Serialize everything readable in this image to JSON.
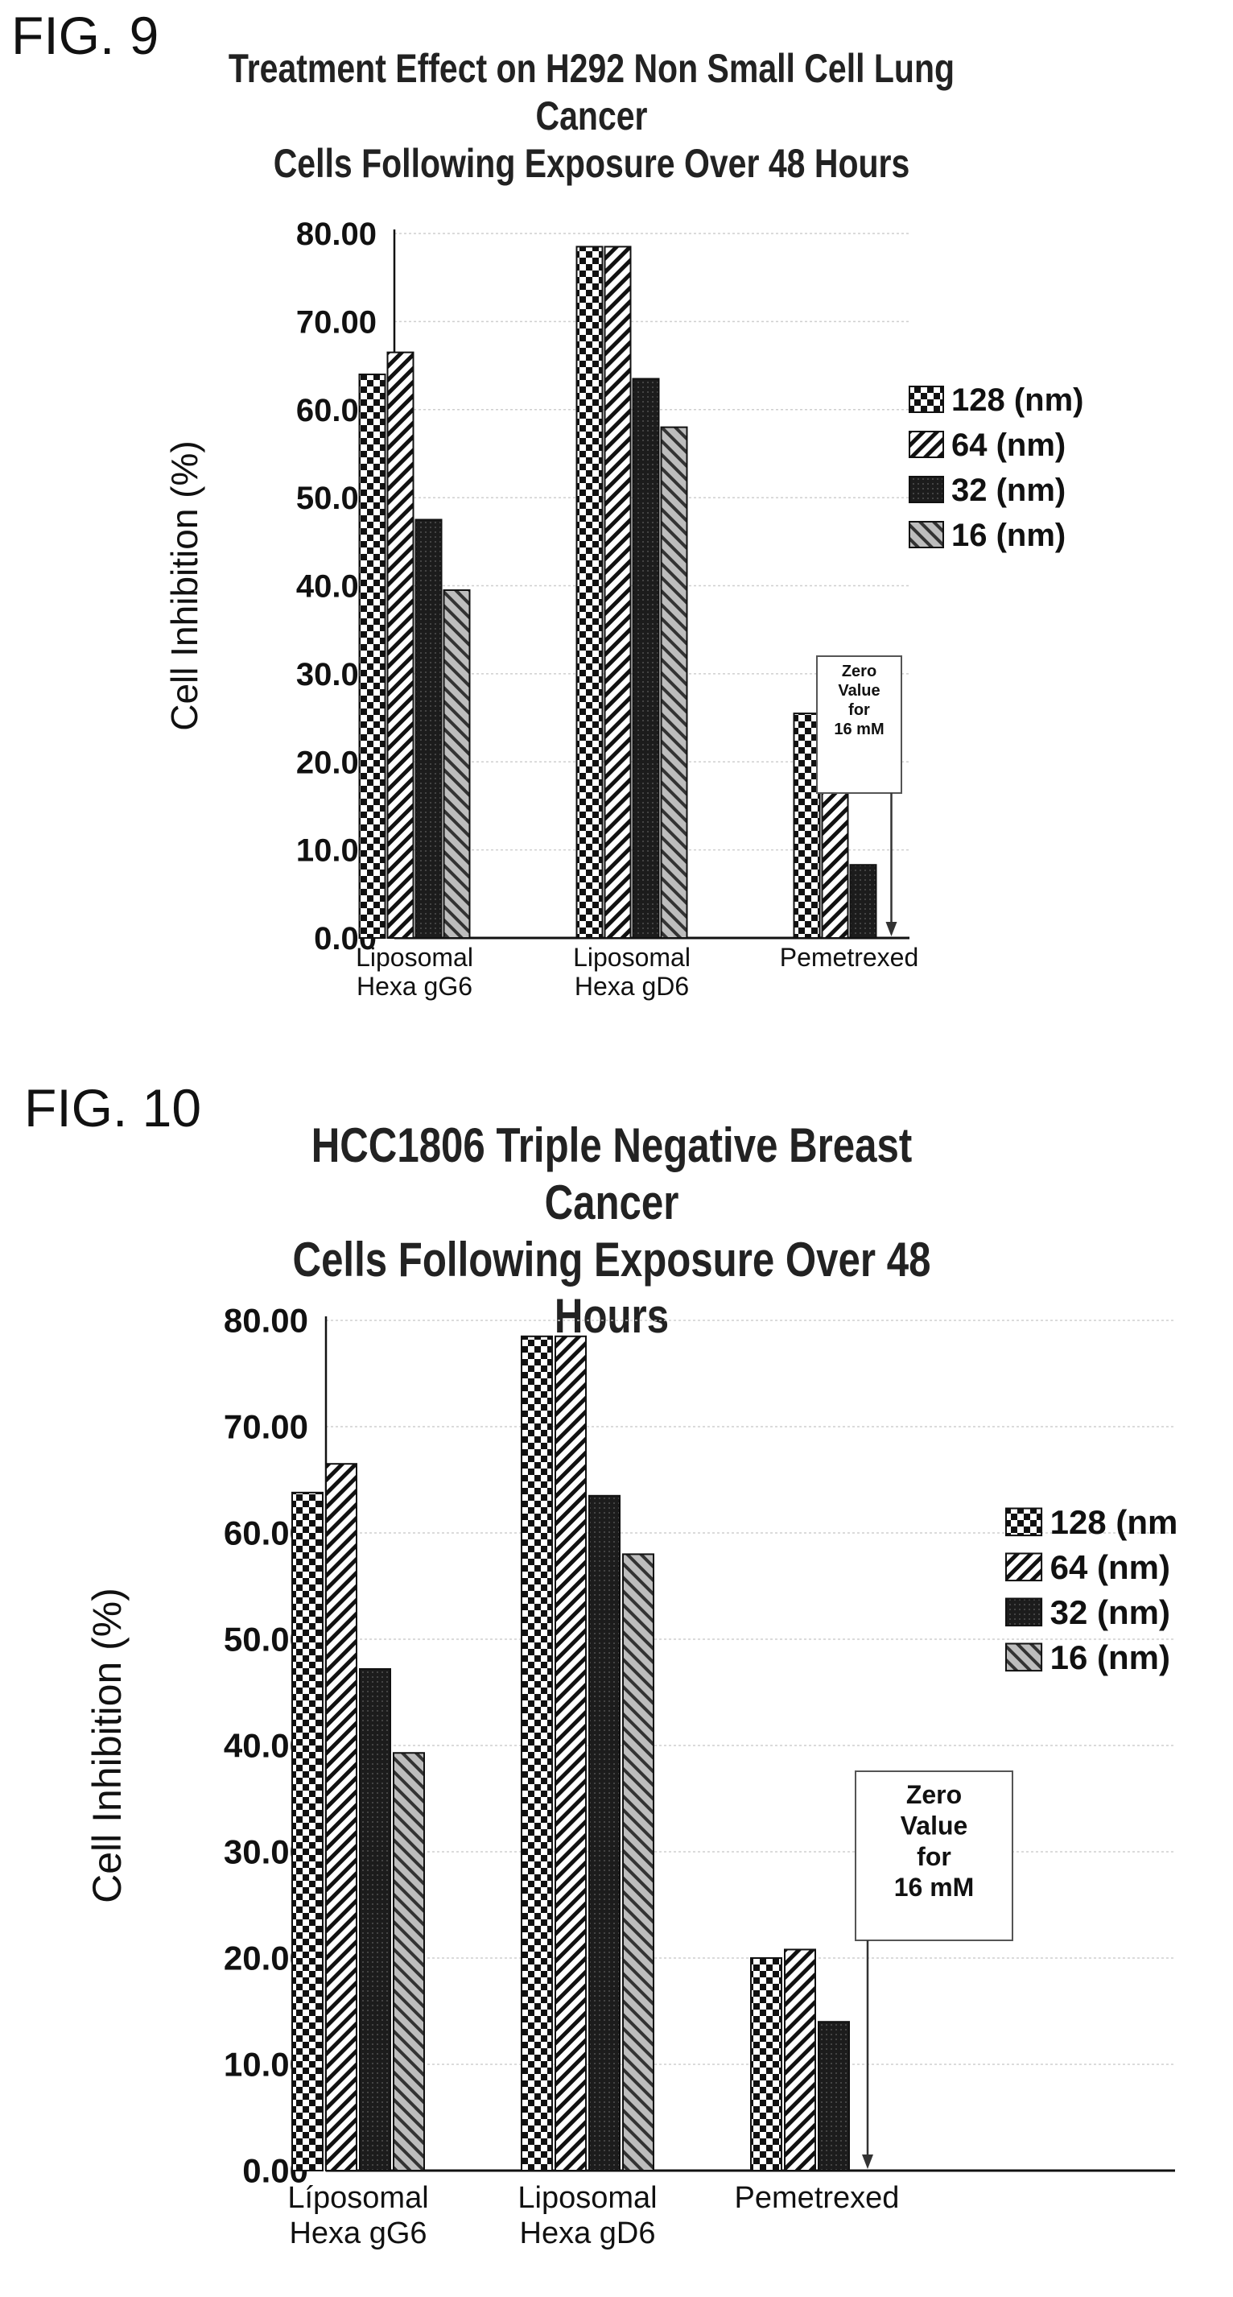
{
  "figures": [
    {
      "label": "FIG. 9",
      "title_lines": [
        "Treatment Effect on H292 Non Small Cell Lung Cancer",
        "Cells  Following Exposure Over 48 Hours"
      ]
    },
    {
      "label": "FIG. 10",
      "title_lines": [
        "HCC1806 Triple Negative Breast Cancer",
        "Cells Following Exposure  Over 48 Hours"
      ]
    }
  ],
  "chart_data": [
    {
      "type": "bar",
      "title": "Treatment Effect on H292 Non Small Cell Lung Cancer Cells Following Exposure Over 48 Hours",
      "ylabel": "Cell Inhibition (%)",
      "xlabel": "",
      "ylim": [
        0,
        80
      ],
      "yticks": [
        "0.00",
        "10.00",
        "20.00",
        "30.00",
        "40.00",
        "50.00",
        "60.00",
        "70.00",
        "80.00"
      ],
      "grid": true,
      "legend_position": "right",
      "categories": [
        [
          "Liposomal",
          "Hexa gG6"
        ],
        [
          "Liposomal",
          "Hexa gD6"
        ],
        [
          "Pemetrexed"
        ]
      ],
      "series": [
        {
          "name": "128 (nm)",
          "pattern": "checker",
          "values": [
            64.0,
            78.5,
            25.5
          ]
        },
        {
          "name": "64 (nm)",
          "pattern": "diag-fwd",
          "values": [
            66.5,
            78.5,
            16.5
          ]
        },
        {
          "name": "32 (nm)",
          "pattern": "dark",
          "values": [
            47.5,
            63.5,
            8.3
          ]
        },
        {
          "name": "16 (nm)",
          "pattern": "diag-back",
          "values": [
            39.5,
            58.0,
            0
          ]
        }
      ],
      "annotation": {
        "lines": [
          "Zero",
          "Value",
          "for",
          "16 mM"
        ],
        "category_index": 2
      }
    },
    {
      "type": "bar",
      "title": "HCC1806 Triple Negative Breast Cancer Cells Following Exposure Over 48 Hours",
      "ylabel": "Cell Inhibition (%)",
      "xlabel": "",
      "ylim": [
        0,
        80
      ],
      "yticks": [
        "0.00",
        "10.00",
        "20.00",
        "30.00",
        "40.00",
        "50.00",
        "60.00",
        "70.00",
        "80.00"
      ],
      "grid": true,
      "legend_position": "right",
      "categories": [
        [
          "Líposomal",
          "Hexa gG6"
        ],
        [
          "Liposomal",
          "Hexa gD6"
        ],
        [
          "Pemetrexed"
        ]
      ],
      "series": [
        {
          "name": "128 (nm",
          "pattern": "checker",
          "values": [
            63.8,
            78.5,
            20.0
          ]
        },
        {
          "name": "64 (nm)",
          "pattern": "diag-fwd",
          "values": [
            66.5,
            78.5,
            20.8
          ]
        },
        {
          "name": "32 (nm)",
          "pattern": "dark",
          "values": [
            47.2,
            63.5,
            14.0
          ]
        },
        {
          "name": "16 (nm)",
          "pattern": "diag-back",
          "values": [
            39.3,
            58.0,
            0
          ]
        }
      ],
      "annotation": {
        "lines": [
          "Zero",
          "Value",
          "for",
          "16 mM"
        ],
        "category_index": 2
      }
    }
  ]
}
